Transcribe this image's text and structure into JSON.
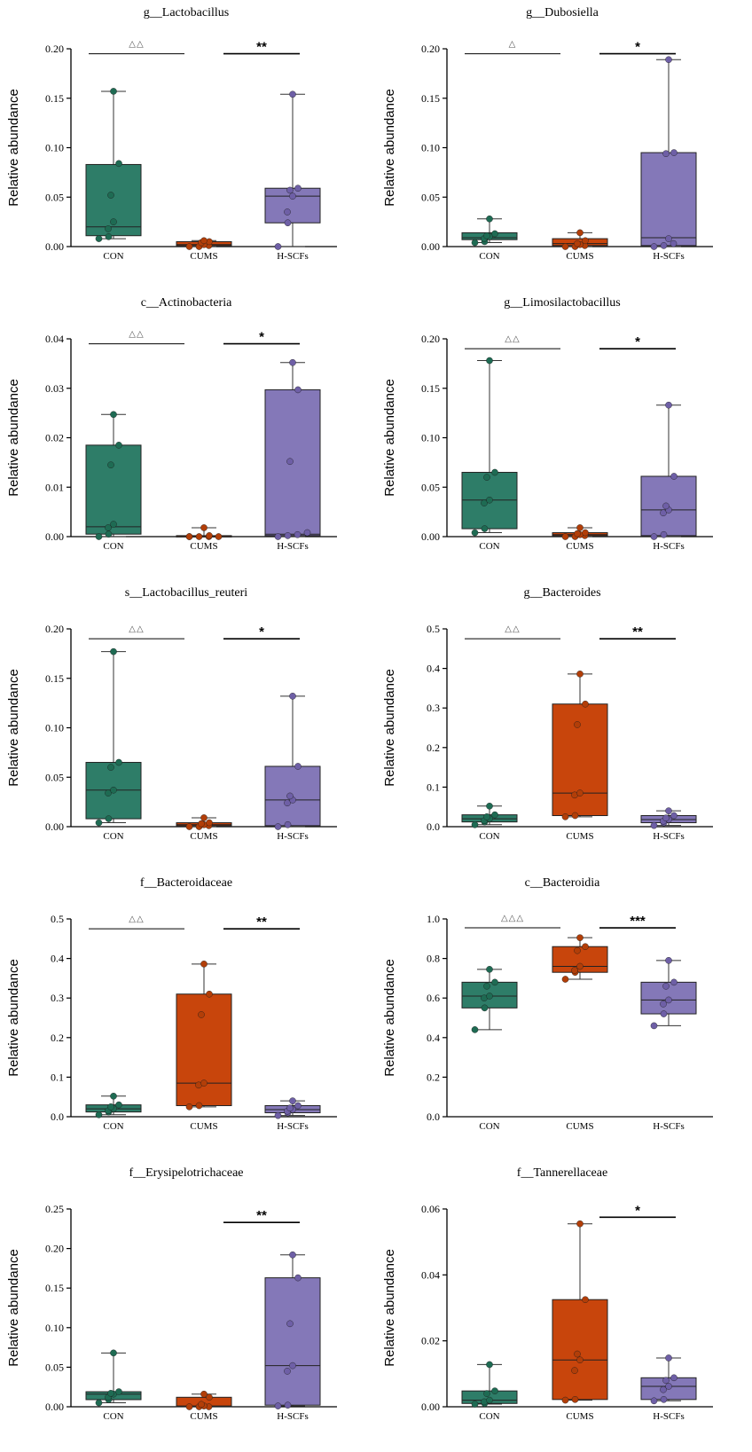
{
  "figure": {
    "ylabel": "Relative abundance",
    "categories": [
      "CON",
      "CUMS",
      "H-SCFs"
    ],
    "group_colors": {
      "CON": "#2e7d68",
      "CUMS": "#c8450c",
      "H-SCFs": "#8478b8"
    },
    "point_colors": {
      "CON": "#1e6b53",
      "CUMS": "#b23e08",
      "H-SCFs": "#6e5fa6"
    }
  },
  "chart_data": [
    {
      "type": "box",
      "title": "g__Lactobacillus",
      "xlabel": "",
      "ylabel": "Relative abundance",
      "categories": [
        "CON",
        "CUMS",
        "H-SCFs"
      ],
      "ylim": [
        0,
        0.2
      ],
      "yticks": [
        0.0,
        0.05,
        0.1,
        0.15,
        0.2
      ],
      "tick_decimals": 2,
      "boxes": [
        {
          "group": "CON",
          "min": 0.008,
          "q1": 0.011,
          "median": 0.02,
          "q3": 0.083,
          "max": 0.157,
          "points": [
            0.157,
            0.084,
            0.052,
            0.025,
            0.018,
            0.01,
            0.008
          ]
        },
        {
          "group": "CUMS",
          "min": 0.0,
          "q1": 0.001,
          "median": 0.002,
          "q3": 0.005,
          "max": 0.006,
          "points": [
            0.006,
            0.005,
            0.004,
            0.002,
            0.001,
            0.0,
            0.0
          ]
        },
        {
          "group": "H-SCFs",
          "min": 0.0,
          "q1": 0.024,
          "median": 0.051,
          "q3": 0.059,
          "max": 0.154,
          "points": [
            0.154,
            0.059,
            0.057,
            0.051,
            0.035,
            0.024,
            0.0
          ]
        }
      ],
      "comparisons": [
        {
          "from": "CON",
          "to": "CUMS",
          "label": "△△",
          "style": "triangle",
          "y": 0.195
        },
        {
          "from": "CUMS",
          "to": "H-SCFs",
          "label": "**",
          "style": "star",
          "y": 0.195
        }
      ]
    },
    {
      "type": "box",
      "title": "g__Dubosiella",
      "xlabel": "",
      "ylabel": "Relative abundance",
      "categories": [
        "CON",
        "CUMS",
        "H-SCFs"
      ],
      "ylim": [
        0,
        0.2
      ],
      "yticks": [
        0.0,
        0.05,
        0.1,
        0.15,
        0.2
      ],
      "tick_decimals": 2,
      "boxes": [
        {
          "group": "CON",
          "min": 0.004,
          "q1": 0.007,
          "median": 0.009,
          "q3": 0.014,
          "max": 0.028,
          "points": [
            0.028,
            0.013,
            0.011,
            0.01,
            0.008,
            0.005,
            0.004
          ]
        },
        {
          "group": "CUMS",
          "min": 0.0,
          "q1": 0.001,
          "median": 0.003,
          "q3": 0.008,
          "max": 0.014,
          "points": [
            0.014,
            0.006,
            0.003,
            0.002,
            0.001,
            0.0,
            0.0
          ]
        },
        {
          "group": "H-SCFs",
          "min": 0.0,
          "q1": 0.001,
          "median": 0.009,
          "q3": 0.095,
          "max": 0.189,
          "points": [
            0.189,
            0.095,
            0.094,
            0.008,
            0.003,
            0.001,
            0.0
          ]
        }
      ],
      "comparisons": [
        {
          "from": "CON",
          "to": "CUMS",
          "label": "△",
          "style": "triangle",
          "y": 0.195
        },
        {
          "from": "CUMS",
          "to": "H-SCFs",
          "label": "*",
          "style": "star",
          "y": 0.195
        }
      ]
    },
    {
      "type": "box",
      "title": "c__Actinobacteria",
      "xlabel": "",
      "ylabel": "Relative abundance",
      "categories": [
        "CON",
        "CUMS",
        "H-SCFs"
      ],
      "ylim": [
        0,
        0.04
      ],
      "yticks": [
        0.0,
        0.01,
        0.02,
        0.03,
        0.04
      ],
      "tick_decimals": 2,
      "boxes": [
        {
          "group": "CON",
          "min": 0.0,
          "q1": 0.0005,
          "median": 0.002,
          "q3": 0.0185,
          "max": 0.0247,
          "points": [
            0.0247,
            0.0185,
            0.0145,
            0.0025,
            0.0018,
            0.0005,
            0.0
          ]
        },
        {
          "group": "CUMS",
          "min": 0.0,
          "q1": 0.0,
          "median": 0.0,
          "q3": 0.0002,
          "max": 0.0018,
          "points": [
            0.0018,
            0.0002,
            0.0,
            0.0,
            0.0,
            0.0,
            0.0
          ]
        },
        {
          "group": "H-SCFs",
          "min": 0.0,
          "q1": 0.0002,
          "median": 0.0005,
          "q3": 0.0297,
          "max": 0.0352,
          "points": [
            0.0352,
            0.0297,
            0.0152,
            0.0008,
            0.0004,
            0.0002,
            0.0
          ]
        }
      ],
      "comparisons": [
        {
          "from": "CON",
          "to": "CUMS",
          "label": "△△",
          "style": "triangle",
          "y": 0.039
        },
        {
          "from": "CUMS",
          "to": "H-SCFs",
          "label": "*",
          "style": "star",
          "y": 0.039
        }
      ]
    },
    {
      "type": "box",
      "title": "g__Limosilactobacillus",
      "xlabel": "",
      "ylabel": "Relative abundance",
      "categories": [
        "CON",
        "CUMS",
        "H-SCFs"
      ],
      "ylim": [
        0,
        0.2
      ],
      "yticks": [
        0.0,
        0.05,
        0.1,
        0.15,
        0.2
      ],
      "tick_decimals": 2,
      "boxes": [
        {
          "group": "CON",
          "min": 0.004,
          "q1": 0.008,
          "median": 0.037,
          "q3": 0.065,
          "max": 0.178,
          "points": [
            0.178,
            0.065,
            0.06,
            0.037,
            0.034,
            0.008,
            0.004
          ]
        },
        {
          "group": "CUMS",
          "min": 0.0,
          "q1": 0.001,
          "median": 0.002,
          "q3": 0.004,
          "max": 0.009,
          "points": [
            0.009,
            0.004,
            0.003,
            0.002,
            0.001,
            0.0,
            0.0
          ]
        },
        {
          "group": "H-SCFs",
          "min": 0.0,
          "q1": 0.001,
          "median": 0.027,
          "q3": 0.061,
          "max": 0.133,
          "points": [
            0.133,
            0.061,
            0.031,
            0.027,
            0.024,
            0.002,
            0.0
          ]
        }
      ],
      "comparisons": [
        {
          "from": "CON",
          "to": "CUMS",
          "label": "△△",
          "style": "triangle",
          "y": 0.19
        },
        {
          "from": "CUMS",
          "to": "H-SCFs",
          "label": "*",
          "style": "star",
          "y": 0.19
        }
      ]
    },
    {
      "type": "box",
      "title": "s__Lactobacillus_reuteri",
      "xlabel": "",
      "ylabel": "Relative abundance",
      "categories": [
        "CON",
        "CUMS",
        "H-SCFs"
      ],
      "ylim": [
        0,
        0.2
      ],
      "yticks": [
        0.0,
        0.05,
        0.1,
        0.15,
        0.2
      ],
      "tick_decimals": 2,
      "boxes": [
        {
          "group": "CON",
          "min": 0.004,
          "q1": 0.008,
          "median": 0.037,
          "q3": 0.065,
          "max": 0.177,
          "points": [
            0.177,
            0.065,
            0.06,
            0.037,
            0.034,
            0.008,
            0.004
          ]
        },
        {
          "group": "CUMS",
          "min": 0.0,
          "q1": 0.001,
          "median": 0.002,
          "q3": 0.004,
          "max": 0.009,
          "points": [
            0.009,
            0.004,
            0.003,
            0.002,
            0.001,
            0.0,
            0.0
          ]
        },
        {
          "group": "H-SCFs",
          "min": 0.0,
          "q1": 0.001,
          "median": 0.027,
          "q3": 0.061,
          "max": 0.132,
          "points": [
            0.132,
            0.061,
            0.031,
            0.027,
            0.024,
            0.002,
            0.0
          ]
        }
      ],
      "comparisons": [
        {
          "from": "CON",
          "to": "CUMS",
          "label": "△△",
          "style": "triangle",
          "y": 0.19
        },
        {
          "from": "CUMS",
          "to": "H-SCFs",
          "label": "*",
          "style": "star",
          "y": 0.19
        }
      ]
    },
    {
      "type": "box",
      "title": "g__Bacteroides",
      "xlabel": "",
      "ylabel": "Relative abundance",
      "categories": [
        "CON",
        "CUMS",
        "H-SCFs"
      ],
      "ylim": [
        0,
        0.5
      ],
      "yticks": [
        0.0,
        0.1,
        0.2,
        0.3,
        0.4,
        0.5
      ],
      "tick_decimals": 1,
      "boxes": [
        {
          "group": "CON",
          "min": 0.005,
          "q1": 0.012,
          "median": 0.02,
          "q3": 0.03,
          "max": 0.052,
          "points": [
            0.052,
            0.03,
            0.025,
            0.02,
            0.015,
            0.012,
            0.005
          ]
        },
        {
          "group": "CUMS",
          "min": 0.025,
          "q1": 0.028,
          "median": 0.085,
          "q3": 0.31,
          "max": 0.386,
          "points": [
            0.386,
            0.31,
            0.258,
            0.085,
            0.08,
            0.028,
            0.025
          ]
        },
        {
          "group": "H-SCFs",
          "min": 0.003,
          "q1": 0.01,
          "median": 0.018,
          "q3": 0.028,
          "max": 0.04,
          "points": [
            0.04,
            0.028,
            0.022,
            0.018,
            0.014,
            0.01,
            0.003
          ]
        }
      ],
      "comparisons": [
        {
          "from": "CON",
          "to": "CUMS",
          "label": "△△",
          "style": "triangle",
          "y": 0.475
        },
        {
          "from": "CUMS",
          "to": "H-SCFs",
          "label": "**",
          "style": "star",
          "y": 0.475
        }
      ]
    },
    {
      "type": "box",
      "title": "f__Bacteroidaceae",
      "xlabel": "",
      "ylabel": "Relative abundance",
      "categories": [
        "CON",
        "CUMS",
        "H-SCFs"
      ],
      "ylim": [
        0,
        0.5
      ],
      "yticks": [
        0.0,
        0.1,
        0.2,
        0.3,
        0.4,
        0.5
      ],
      "tick_decimals": 1,
      "boxes": [
        {
          "group": "CON",
          "min": 0.005,
          "q1": 0.012,
          "median": 0.02,
          "q3": 0.03,
          "max": 0.052,
          "points": [
            0.052,
            0.03,
            0.025,
            0.02,
            0.015,
            0.012,
            0.005
          ]
        },
        {
          "group": "CUMS",
          "min": 0.025,
          "q1": 0.028,
          "median": 0.085,
          "q3": 0.31,
          "max": 0.386,
          "points": [
            0.386,
            0.31,
            0.258,
            0.085,
            0.08,
            0.028,
            0.025
          ]
        },
        {
          "group": "H-SCFs",
          "min": 0.003,
          "q1": 0.01,
          "median": 0.018,
          "q3": 0.028,
          "max": 0.04,
          "points": [
            0.04,
            0.028,
            0.022,
            0.018,
            0.014,
            0.01,
            0.003
          ]
        }
      ],
      "comparisons": [
        {
          "from": "CON",
          "to": "CUMS",
          "label": "△△",
          "style": "triangle",
          "y": 0.475
        },
        {
          "from": "CUMS",
          "to": "H-SCFs",
          "label": "**",
          "style": "star",
          "y": 0.475
        }
      ]
    },
    {
      "type": "box",
      "title": "c__Bacteroidia",
      "xlabel": "",
      "ylabel": "Relative abundance",
      "categories": [
        "CON",
        "CUMS",
        "H-SCFs"
      ],
      "ylim": [
        0,
        1.0
      ],
      "yticks": [
        0.0,
        0.2,
        0.4,
        0.6,
        0.8,
        1.0
      ],
      "tick_decimals": 1,
      "boxes": [
        {
          "group": "CON",
          "min": 0.44,
          "q1": 0.55,
          "median": 0.61,
          "q3": 0.68,
          "max": 0.745,
          "points": [
            0.745,
            0.68,
            0.66,
            0.61,
            0.6,
            0.55,
            0.44
          ]
        },
        {
          "group": "CUMS",
          "min": 0.695,
          "q1": 0.73,
          "median": 0.76,
          "q3": 0.86,
          "max": 0.905,
          "points": [
            0.905,
            0.86,
            0.84,
            0.76,
            0.74,
            0.73,
            0.695
          ]
        },
        {
          "group": "H-SCFs",
          "min": 0.46,
          "q1": 0.52,
          "median": 0.59,
          "q3": 0.68,
          "max": 0.79,
          "points": [
            0.79,
            0.68,
            0.66,
            0.59,
            0.57,
            0.52,
            0.46
          ]
        }
      ],
      "comparisons": [
        {
          "from": "CON",
          "to": "CUMS",
          "label": "△△△",
          "style": "triangle",
          "y": 0.955
        },
        {
          "from": "CUMS",
          "to": "H-SCFs",
          "label": "***",
          "style": "star",
          "y": 0.955
        }
      ]
    },
    {
      "type": "box",
      "title": "f__Erysipelotrichaceae",
      "xlabel": "",
      "ylabel": "Relative abundance",
      "categories": [
        "CON",
        "CUMS",
        "H-SCFs"
      ],
      "ylim": [
        0,
        0.25
      ],
      "yticks": [
        0.0,
        0.05,
        0.1,
        0.15,
        0.2,
        0.25
      ],
      "tick_decimals": 2,
      "boxes": [
        {
          "group": "CON",
          "min": 0.005,
          "q1": 0.009,
          "median": 0.016,
          "q3": 0.019,
          "max": 0.068,
          "points": [
            0.068,
            0.019,
            0.017,
            0.016,
            0.012,
            0.009,
            0.005
          ]
        },
        {
          "group": "CUMS",
          "min": 0.0,
          "q1": 0.0,
          "median": 0.001,
          "q3": 0.012,
          "max": 0.016,
          "points": [
            0.016,
            0.012,
            0.003,
            0.001,
            0.0,
            0.0,
            0.0
          ]
        },
        {
          "group": "H-SCFs",
          "min": 0.001,
          "q1": 0.002,
          "median": 0.052,
          "q3": 0.163,
          "max": 0.192,
          "points": [
            0.192,
            0.163,
            0.105,
            0.052,
            0.045,
            0.002,
            0.001
          ]
        }
      ],
      "comparisons": [
        {
          "from": "CUMS",
          "to": "H-SCFs",
          "label": "**",
          "style": "star",
          "y": 0.233
        }
      ]
    },
    {
      "type": "box",
      "title": "f__Tannerellaceae",
      "xlabel": "",
      "ylabel": "Relative abundance",
      "categories": [
        "CON",
        "CUMS",
        "H-SCFs"
      ],
      "ylim": [
        0,
        0.06
      ],
      "yticks": [
        0.0,
        0.02,
        0.04,
        0.06
      ],
      "tick_decimals": 2,
      "boxes": [
        {
          "group": "CON",
          "min": 0.0008,
          "q1": 0.001,
          "median": 0.002,
          "q3": 0.0048,
          "max": 0.0128,
          "points": [
            0.0128,
            0.0048,
            0.004,
            0.002,
            0.0015,
            0.001,
            0.0008
          ]
        },
        {
          "group": "CUMS",
          "min": 0.002,
          "q1": 0.0022,
          "median": 0.0142,
          "q3": 0.0325,
          "max": 0.0555,
          "points": [
            0.0555,
            0.0325,
            0.016,
            0.0142,
            0.011,
            0.0022,
            0.002
          ]
        },
        {
          "group": "H-SCFs",
          "min": 0.0018,
          "q1": 0.0022,
          "median": 0.0062,
          "q3": 0.0088,
          "max": 0.0148,
          "points": [
            0.0148,
            0.0088,
            0.008,
            0.0062,
            0.0052,
            0.0022,
            0.0018
          ]
        }
      ],
      "comparisons": [
        {
          "from": "CUMS",
          "to": "H-SCFs",
          "label": "*",
          "style": "star",
          "y": 0.0575
        }
      ]
    }
  ]
}
